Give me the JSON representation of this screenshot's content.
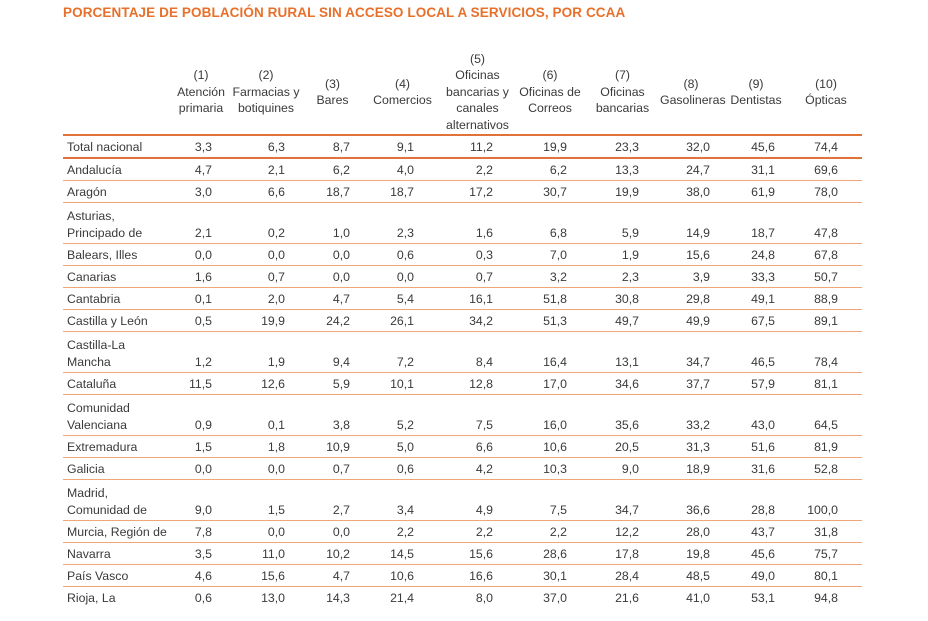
{
  "title": "PORCENTAJE DE POBLACIÓN RURAL SIN ACCESO LOCAL A SERVICIOS, POR CCAA",
  "accent_color": "#e8702a",
  "columns": [
    {
      "num": "(1)",
      "lines": [
        "Atención",
        "primaria"
      ]
    },
    {
      "num": "(2)",
      "lines": [
        "Farmacias y",
        "botiquines"
      ]
    },
    {
      "num": "(3)",
      "lines": [
        "Bares"
      ]
    },
    {
      "num": "(4)",
      "lines": [
        "Comercios"
      ]
    },
    {
      "num": "(5)",
      "lines": [
        "Oficinas",
        "bancarias y",
        "canales",
        "alternativos"
      ]
    },
    {
      "num": "(6)",
      "lines": [
        "Oficinas de",
        "Correos"
      ]
    },
    {
      "num": "(7)",
      "lines": [
        "Oficinas",
        "bancarias"
      ]
    },
    {
      "num": "(8)",
      "lines": [
        "Gasolineras"
      ]
    },
    {
      "num": "(9)",
      "lines": [
        "Dentistas"
      ]
    },
    {
      "num": "(10)",
      "lines": [
        "Ópticas"
      ]
    }
  ],
  "rows": [
    {
      "label": [
        "Total nacional"
      ],
      "values": [
        "3,3",
        "6,3",
        "8,7",
        "9,1",
        "11,2",
        "19,9",
        "23,3",
        "32,0",
        "45,6",
        "74,4"
      ]
    },
    {
      "label": [
        "Andalucía"
      ],
      "values": [
        "4,7",
        "2,1",
        "6,2",
        "4,0",
        "2,2",
        "6,2",
        "13,3",
        "24,7",
        "31,1",
        "69,6"
      ]
    },
    {
      "label": [
        "Aragón"
      ],
      "values": [
        "3,0",
        "6,6",
        "18,7",
        "18,7",
        "17,2",
        "30,7",
        "19,9",
        "38,0",
        "61,9",
        "78,0"
      ]
    },
    {
      "label": [
        "Asturias,",
        "Principado de"
      ],
      "values": [
        "2,1",
        "0,2",
        "1,0",
        "2,3",
        "1,6",
        "6,8",
        "5,9",
        "14,9",
        "18,7",
        "47,8"
      ]
    },
    {
      "label": [
        "Balears, Illes"
      ],
      "values": [
        "0,0",
        "0,0",
        "0,0",
        "0,6",
        "0,3",
        "7,0",
        "1,9",
        "15,6",
        "24,8",
        "67,8"
      ]
    },
    {
      "label": [
        "Canarias"
      ],
      "values": [
        "1,6",
        "0,7",
        "0,0",
        "0,0",
        "0,7",
        "3,2",
        "2,3",
        "3,9",
        "33,3",
        "50,7"
      ]
    },
    {
      "label": [
        "Cantabria"
      ],
      "values": [
        "0,1",
        "2,0",
        "4,7",
        "5,4",
        "16,1",
        "51,8",
        "30,8",
        "29,8",
        "49,1",
        "88,9"
      ]
    },
    {
      "label": [
        "Castilla y León"
      ],
      "values": [
        "0,5",
        "19,9",
        "24,2",
        "26,1",
        "34,2",
        "51,3",
        "49,7",
        "49,9",
        "67,5",
        "89,1"
      ]
    },
    {
      "label": [
        "Castilla-La",
        "Mancha"
      ],
      "values": [
        "1,2",
        "1,9",
        "9,4",
        "7,2",
        "8,4",
        "16,4",
        "13,1",
        "34,7",
        "46,5",
        "78,4"
      ]
    },
    {
      "label": [
        "Cataluña"
      ],
      "values": [
        "11,5",
        "12,6",
        "5,9",
        "10,1",
        "12,8",
        "17,0",
        "34,6",
        "37,7",
        "57,9",
        "81,1"
      ]
    },
    {
      "label": [
        "Comunidad",
        "Valenciana"
      ],
      "values": [
        "0,9",
        "0,1",
        "3,8",
        "5,2",
        "7,5",
        "16,0",
        "35,6",
        "33,2",
        "43,0",
        "64,5"
      ]
    },
    {
      "label": [
        "Extremadura"
      ],
      "values": [
        "1,5",
        "1,8",
        "10,9",
        "5,0",
        "6,6",
        "10,6",
        "20,5",
        "31,3",
        "51,6",
        "81,9"
      ]
    },
    {
      "label": [
        "Galicia"
      ],
      "values": [
        "0,0",
        "0,0",
        "0,7",
        "0,6",
        "4,2",
        "10,3",
        "9,0",
        "18,9",
        "31,6",
        "52,8"
      ]
    },
    {
      "label": [
        "Madrid,",
        "Comunidad de"
      ],
      "values": [
        "9,0",
        "1,5",
        "2,7",
        "3,4",
        "4,9",
        "7,5",
        "34,7",
        "36,6",
        "28,8",
        "100,0"
      ]
    },
    {
      "label": [
        "Murcia, Región de"
      ],
      "values": [
        "7,8",
        "0,0",
        "0,0",
        "2,2",
        "2,2",
        "2,2",
        "12,2",
        "28,0",
        "43,7",
        "31,8"
      ]
    },
    {
      "label": [
        "Navarra"
      ],
      "values": [
        "3,5",
        "11,0",
        "10,2",
        "14,5",
        "15,6",
        "28,6",
        "17,8",
        "19,8",
        "45,6",
        "75,7"
      ]
    },
    {
      "label": [
        "País Vasco"
      ],
      "values": [
        "4,6",
        "15,6",
        "4,7",
        "10,6",
        "16,6",
        "30,1",
        "28,4",
        "48,5",
        "49,0",
        "80,1"
      ]
    },
    {
      "label": [
        "Rioja, La"
      ],
      "values": [
        "0,6",
        "13,0",
        "14,3",
        "21,4",
        "8,0",
        "37,0",
        "21,6",
        "41,0",
        "53,1",
        "94,8"
      ]
    }
  ]
}
